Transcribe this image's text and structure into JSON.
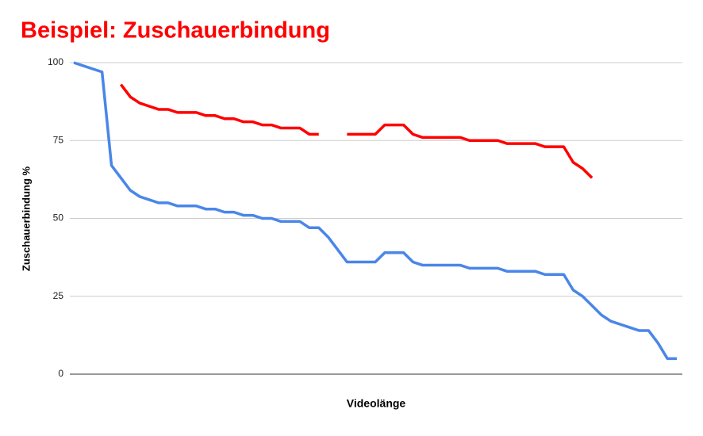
{
  "chart_data": {
    "type": "line",
    "title": "Beispiel: Zuschauerbindung",
    "x_label": "Videolänge",
    "y_label": "Zuschauerbindung %",
    "categories": [
      null,
      null,
      null,
      null,
      null,
      null,
      null,
      null,
      null,
      null,
      null,
      null,
      null,
      null,
      null,
      null,
      null,
      null,
      null,
      null,
      null,
      null,
      null,
      null,
      null,
      null,
      null,
      null,
      null,
      null,
      null,
      null,
      null,
      null,
      null,
      null,
      null,
      null,
      null,
      null,
      null,
      null,
      null,
      null,
      null,
      null,
      null,
      null,
      null,
      null,
      null,
      null,
      null,
      null,
      null,
      null,
      null,
      null,
      null,
      null,
      null,
      null,
      null,
      null,
      null
    ],
    "series": [
      {
        "color": "#4a86e8",
        "values": [
          100,
          99,
          98,
          97,
          67,
          63,
          59,
          57,
          56,
          55,
          55,
          54,
          54,
          54,
          53,
          53,
          52,
          52,
          51,
          51,
          50,
          50,
          49,
          49,
          49,
          47,
          47,
          44,
          40,
          36,
          36,
          36,
          36,
          39,
          39,
          39,
          36,
          35,
          35,
          35,
          35,
          35,
          34,
          34,
          34,
          34,
          33,
          33,
          33,
          33,
          32,
          32,
          32,
          27,
          25,
          22,
          19,
          17,
          16,
          15,
          14,
          14,
          10,
          5,
          5
        ]
      },
      {
        "color": "#ff0000",
        "values": [
          null,
          null,
          null,
          null,
          null,
          93,
          89,
          87,
          86,
          85,
          85,
          84,
          84,
          84,
          83,
          83,
          82,
          82,
          81,
          81,
          80,
          80,
          79,
          79,
          79,
          77,
          77,
          null,
          null,
          77,
          77,
          77,
          77,
          80,
          80,
          80,
          77,
          76,
          76,
          76,
          76,
          76,
          75,
          75,
          75,
          75,
          74,
          74,
          74,
          74,
          73,
          73,
          73,
          68,
          66,
          63,
          null,
          null,
          null,
          null,
          null,
          null,
          null,
          null,
          null
        ]
      }
    ],
    "ylim": [
      0,
      100
    ],
    "yticks": [
      0,
      25,
      50,
      75,
      100
    ],
    "grid": true
  }
}
